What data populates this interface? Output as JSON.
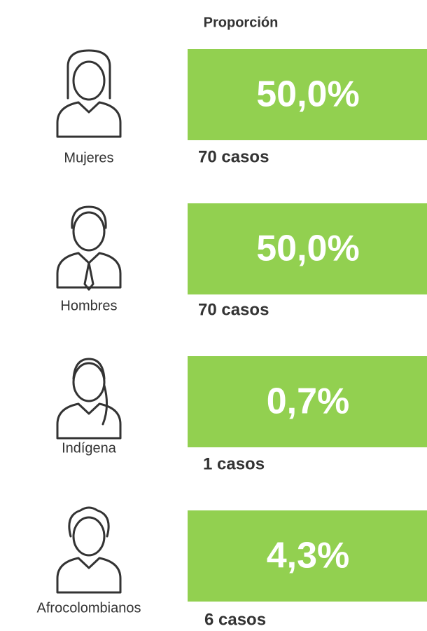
{
  "header": {
    "title": "Proporción"
  },
  "items": [
    {
      "label": "Mujeres",
      "percent": "50,0%",
      "cases": "70 casos"
    },
    {
      "label": "Hombres",
      "percent": "50,0%",
      "cases": "70 casos"
    },
    {
      "label": "Indígena",
      "percent": "0,7%",
      "cases": "1 casos"
    },
    {
      "label": "Afrocolombianos",
      "percent": "4,3%",
      "cases": "6 casos"
    }
  ]
}
